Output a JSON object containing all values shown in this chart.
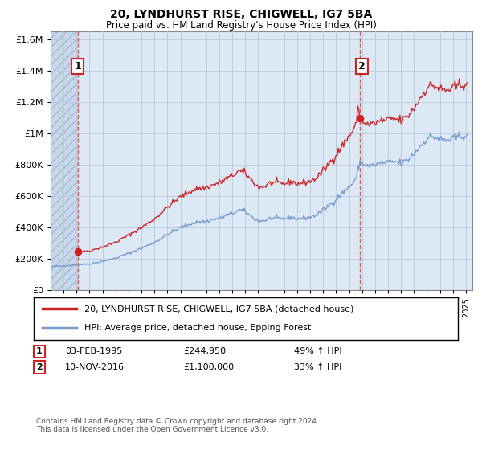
{
  "title": "20, LYNDHURST RISE, CHIGWELL, IG7 5BA",
  "subtitle": "Price paid vs. HM Land Registry's House Price Index (HPI)",
  "legend_line1": "20, LYNDHURST RISE, CHIGWELL, IG7 5BA (detached house)",
  "legend_line2": "HPI: Average price, detached house, Epping Forest",
  "transaction1_date": "03-FEB-1995",
  "transaction1_price": 244950,
  "transaction1_label": "£244,950",
  "transaction1_pct": "49% ↑ HPI",
  "transaction2_date": "10-NOV-2016",
  "transaction2_price": 1100000,
  "transaction2_label": "£1,100,000",
  "transaction2_pct": "33% ↑ HPI",
  "hpi_color": "#7799cc",
  "price_color": "#cc2222",
  "vline_color": "#dd4444",
  "bg_plot_color": "#dde8f5",
  "bg_hatch_color": "#c8d8ec",
  "grid_color": "#b8c8dc",
  "ylim": [
    0,
    1650000
  ],
  "yticks": [
    0,
    200000,
    400000,
    600000,
    800000,
    1000000,
    1200000,
    1400000,
    1600000
  ],
  "xlim_start": 1993.0,
  "xlim_end": 2025.5,
  "t1_year": 1995.08,
  "t2_year": 2016.83,
  "footer": "Contains HM Land Registry data © Crown copyright and database right 2024.\nThis data is licensed under the Open Government Licence v3.0."
}
